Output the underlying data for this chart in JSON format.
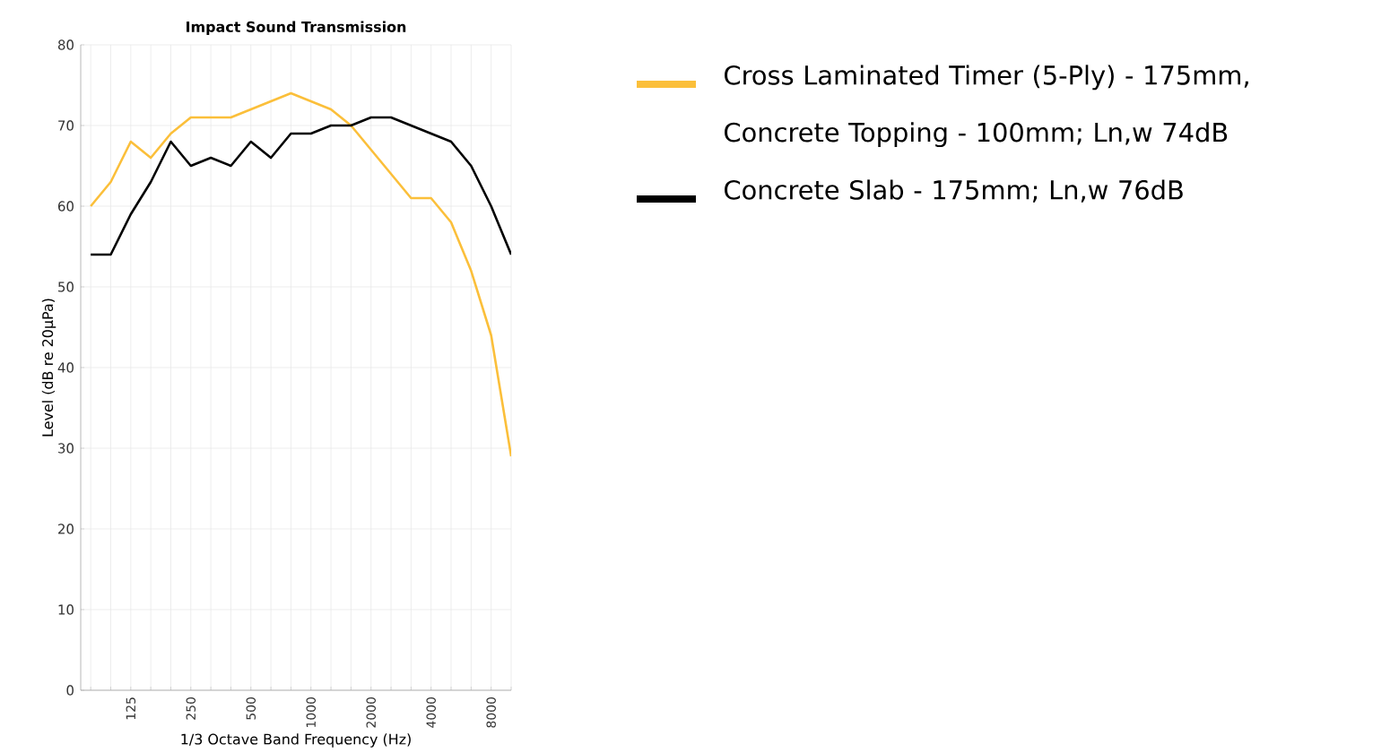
{
  "chart_data": {
    "type": "line",
    "title": "Impact Sound Transmission",
    "xlabel": "1/3 Octave Band Frequency (Hz)",
    "ylabel": "Level (dB re 20μPa)",
    "categories": [
      null,
      null,
      "125",
      null,
      null,
      "250",
      null,
      null,
      "500",
      null,
      null,
      "1000",
      null,
      null,
      "2000",
      null,
      null,
      "4000",
      null,
      null,
      "8000",
      null
    ],
    "series": [
      {
        "name": "Cross Laminated Timer (5-Ply) - 175mm, Concrete Topping - 100mm; Ln,w 74dB",
        "color": "#fbbf3a",
        "values": [
          60,
          63,
          68,
          66,
          69,
          71,
          71,
          71,
          72,
          73,
          74,
          73,
          72,
          70,
          67,
          64,
          61,
          61,
          58,
          52,
          44,
          29
        ]
      },
      {
        "name": "Concrete Slab - 175mm; Ln,w 76dB",
        "color": "#000000",
        "values": [
          54,
          54,
          59,
          63,
          68,
          65,
          66,
          65,
          68,
          66,
          69,
          69,
          70,
          70,
          71,
          71,
          70,
          69,
          68,
          65,
          60,
          54
        ]
      }
    ],
    "ylim": [
      0,
      80
    ],
    "yticks": [
      0,
      10,
      20,
      30,
      40,
      50,
      60,
      70,
      80
    ],
    "grid": true,
    "legend": "right",
    "marker": "none",
    "line_style": "solid"
  }
}
